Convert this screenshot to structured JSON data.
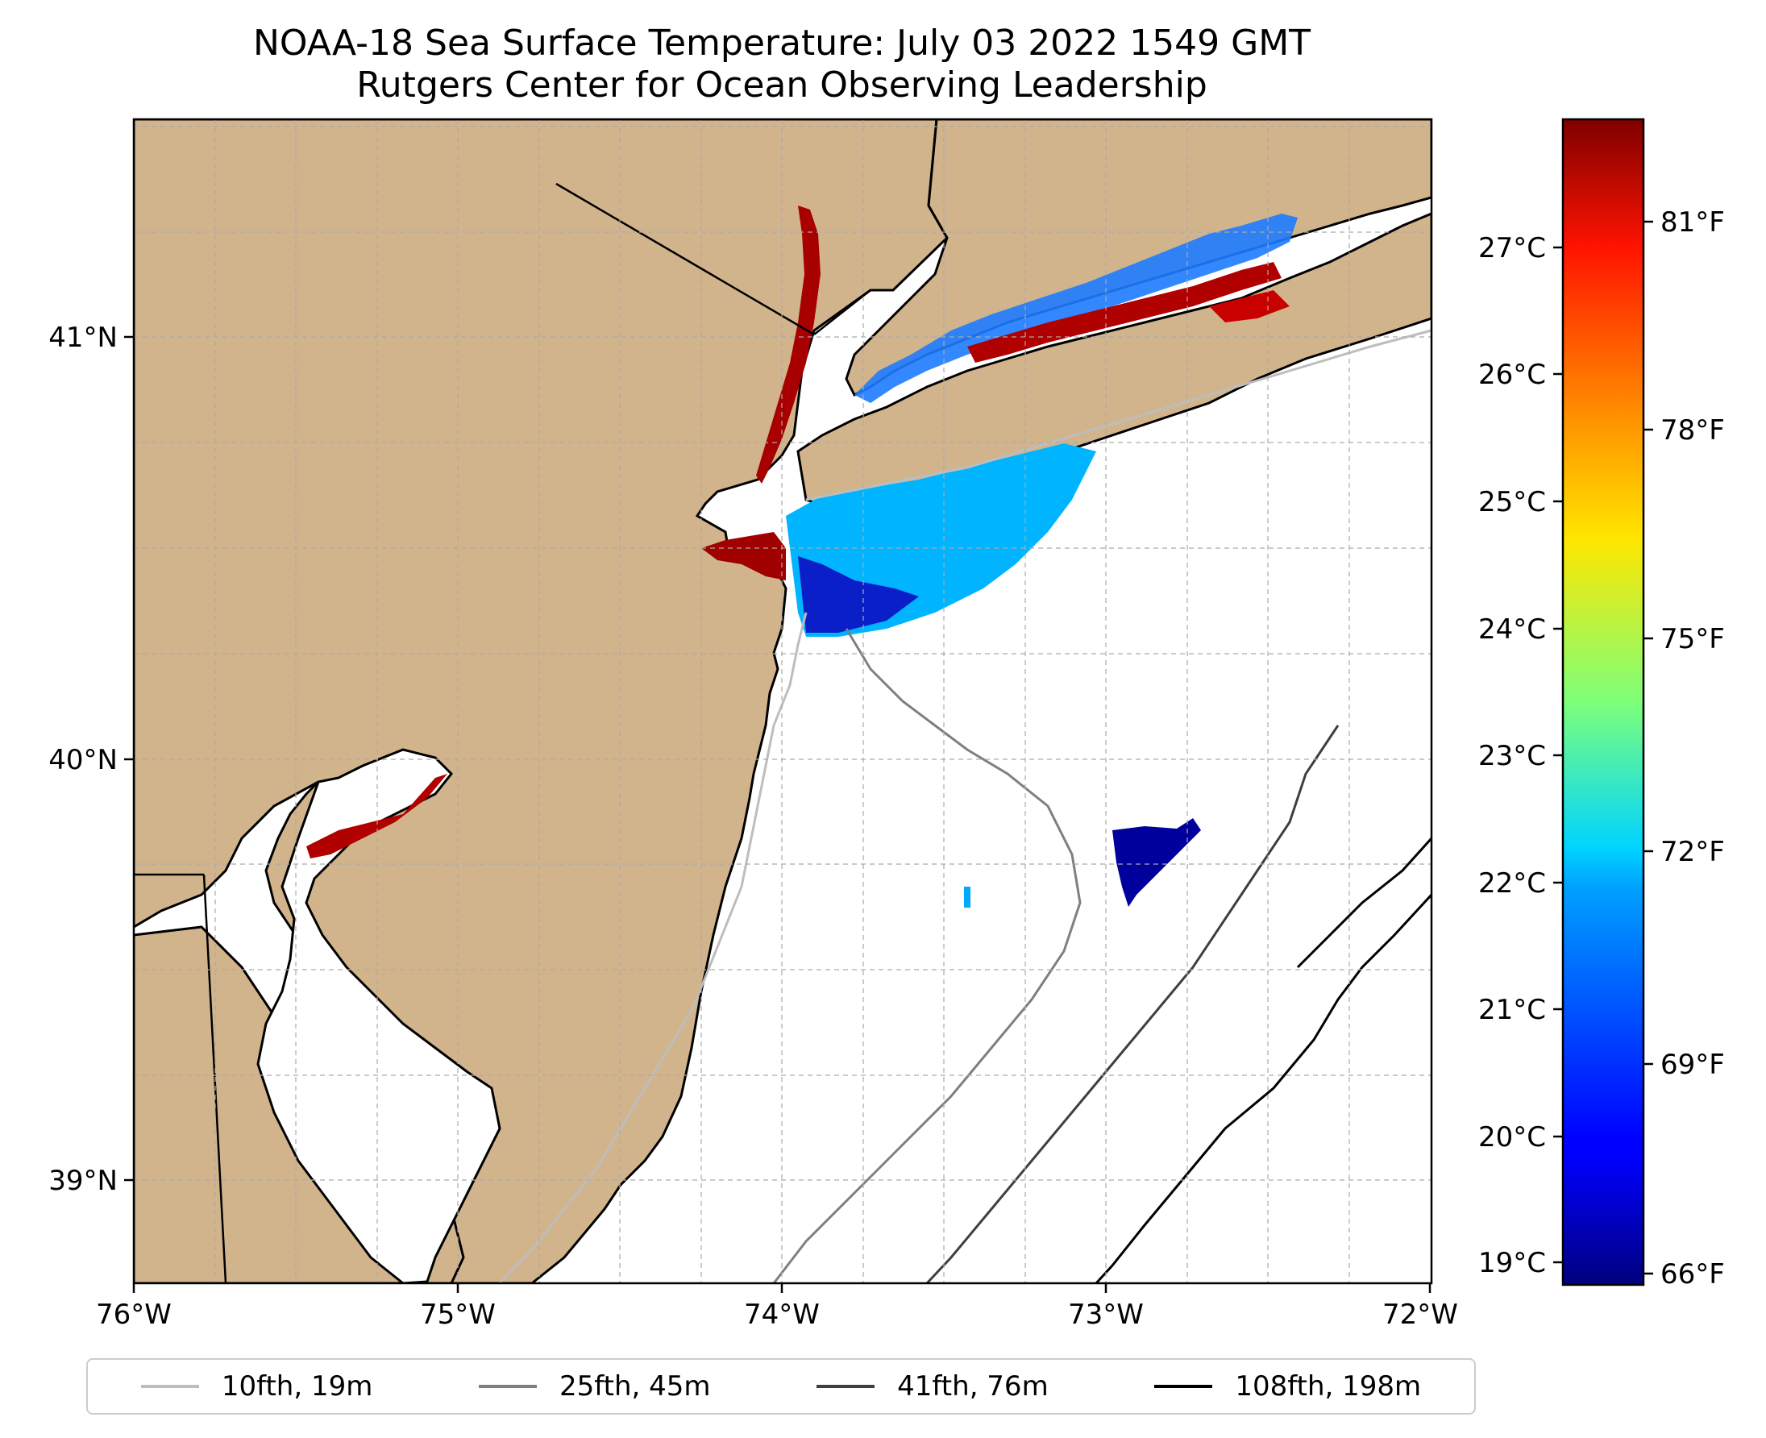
{
  "title": {
    "line1": "NOAA-18 Sea Surface Temperature: July 03 2022 1549 GMT",
    "line2": "Rutgers Center for Ocean Observing Leadership"
  },
  "chart_data": {
    "type": "heatmap",
    "title": "NOAA-18 Sea Surface Temperature: July 03 2022 1549 GMT",
    "subtitle": "Rutgers Center for Ocean Observing Leadership",
    "x_ticks": [
      "76°W",
      "75°W",
      "74°W",
      "73°W",
      "72°W"
    ],
    "y_ticks": [
      "41°N",
      "40°N",
      "39°N"
    ],
    "lon_range": [
      -76.0,
      -72.0
    ],
    "lat_range": [
      38.75,
      41.5
    ],
    "colorbar": {
      "colormap": "jet",
      "celsius_ticks": [
        "27°C",
        "26°C",
        "25°C",
        "24°C",
        "23°C",
        "22°C",
        "21°C",
        "20°C",
        "19°C"
      ],
      "fahrenheit_ticks": [
        "81°F",
        "78°F",
        "75°F",
        "72°F",
        "69°F",
        "66°F"
      ],
      "range_c": [
        18.9,
        27.9
      ]
    },
    "legend": [
      {
        "label": "10fth, 19m",
        "color": "#bdbdbd"
      },
      {
        "label": "25fth, 45m",
        "color": "#7f7f7f"
      },
      {
        "label": "41fth, 76m",
        "color": "#3f3f3f"
      },
      {
        "label": "108fth, 198m",
        "color": "#000000"
      }
    ]
  },
  "colors": {
    "land": "#d2b48c",
    "ocean": "#ffffff",
    "grid": "#aaaaaa"
  }
}
